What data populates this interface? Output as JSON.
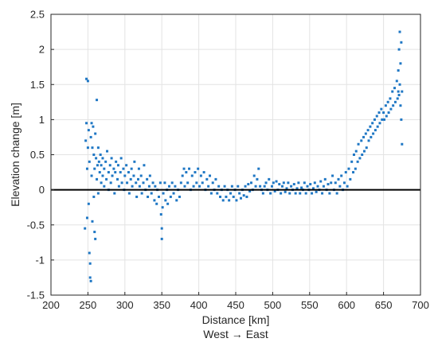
{
  "chart_data": {
    "type": "scatter",
    "title": "",
    "xlabel": "Distance [km]",
    "xlabel2": "West → East",
    "ylabel": "Elevation change [m]",
    "xlim": [
      200,
      700
    ],
    "ylim": [
      -1.5,
      2.5
    ],
    "xticks": [
      "200",
      "250",
      "300",
      "350",
      "400",
      "450",
      "500",
      "550",
      "600",
      "650",
      "700"
    ],
    "yticks": [
      "-1.5",
      "-1",
      "-0.5",
      "0",
      "0.5",
      "1",
      "1.5",
      "2",
      "2.5"
    ],
    "grid": true,
    "reference_line_y": 0,
    "marker_color": "#1f77c4",
    "series": [
      {
        "values": [
          [
            246,
            -0.55
          ],
          [
            247,
            0.7
          ],
          [
            248,
            1.58
          ],
          [
            248,
            0.95
          ],
          [
            249,
            0.3
          ],
          [
            249,
            -0.4
          ],
          [
            250,
            1.55
          ],
          [
            250,
            0.6
          ],
          [
            251,
            -0.2
          ],
          [
            251,
            0.85
          ],
          [
            252,
            -0.9
          ],
          [
            252,
            0.4
          ],
          [
            253,
            -1.05
          ],
          [
            253,
            -1.25
          ],
          [
            254,
            -1.3
          ],
          [
            254,
            0.75
          ],
          [
            255,
            0.95
          ],
          [
            255,
            0.2
          ],
          [
            256,
            -0.45
          ],
          [
            256,
            0.6
          ],
          [
            257,
            0.9
          ],
          [
            258,
            -0.1
          ],
          [
            258,
            0.5
          ],
          [
            259,
            -0.6
          ],
          [
            259,
            0.3
          ],
          [
            260,
            0.8
          ],
          [
            260,
            -0.7
          ],
          [
            261,
            0.45
          ],
          [
            262,
            1.28
          ],
          [
            262,
            0.15
          ],
          [
            263,
            0.35
          ],
          [
            264,
            0.6
          ],
          [
            264,
            -0.05
          ],
          [
            265,
            0.4
          ],
          [
            266,
            0.25
          ],
          [
            267,
            0.5
          ],
          [
            268,
            0.1
          ],
          [
            268,
            0.35
          ],
          [
            270,
            0.2
          ],
          [
            270,
            0.45
          ],
          [
            272,
            0.3
          ],
          [
            272,
            0.05
          ],
          [
            274,
            0.4
          ],
          [
            275,
            0.15
          ],
          [
            276,
            0.55
          ],
          [
            278,
            0.25
          ],
          [
            278,
            0.0
          ],
          [
            280,
            0.35
          ],
          [
            281,
            0.1
          ],
          [
            282,
            0.45
          ],
          [
            283,
            0.2
          ],
          [
            285,
            0.3
          ],
          [
            286,
            -0.05
          ],
          [
            287,
            0.25
          ],
          [
            288,
            0.4
          ],
          [
            290,
            0.15
          ],
          [
            291,
            0.35
          ],
          [
            292,
            0.05
          ],
          [
            294,
            0.25
          ],
          [
            295,
            0.45
          ],
          [
            296,
            0.1
          ],
          [
            298,
            0.3
          ],
          [
            299,
            0.0
          ],
          [
            300,
            0.2
          ],
          [
            302,
            0.35
          ],
          [
            303,
            0.1
          ],
          [
            305,
            0.25
          ],
          [
            306,
            -0.05
          ],
          [
            308,
            0.15
          ],
          [
            309,
            0.3
          ],
          [
            310,
            0.05
          ],
          [
            312,
            0.2
          ],
          [
            313,
            0.4
          ],
          [
            315,
            0.1
          ],
          [
            316,
            -0.1
          ],
          [
            318,
            0.15
          ],
          [
            319,
            0.3
          ],
          [
            320,
            0.05
          ],
          [
            322,
            0.2
          ],
          [
            323,
            -0.05
          ],
          [
            325,
            0.1
          ],
          [
            326,
            0.35
          ],
          [
            328,
            0.0
          ],
          [
            330,
            0.15
          ],
          [
            331,
            -0.1
          ],
          [
            333,
            0.05
          ],
          [
            334,
            0.2
          ],
          [
            336,
            -0.05
          ],
          [
            338,
            0.1
          ],
          [
            340,
            -0.15
          ],
          [
            341,
            0.05
          ],
          [
            343,
            -0.2
          ],
          [
            344,
            0.0
          ],
          [
            346,
            -0.1
          ],
          [
            348,
            0.1
          ],
          [
            349,
            -0.35
          ],
          [
            350,
            -0.7
          ],
          [
            350,
            -0.55
          ],
          [
            351,
            -0.25
          ],
          [
            352,
            -0.05
          ],
          [
            354,
            0.1
          ],
          [
            355,
            -0.15
          ],
          [
            357,
            0.0
          ],
          [
            358,
            -0.2
          ],
          [
            360,
            0.05
          ],
          [
            362,
            -0.1
          ],
          [
            364,
            0.1
          ],
          [
            366,
            -0.05
          ],
          [
            368,
            0.05
          ],
          [
            370,
            -0.15
          ],
          [
            372,
            0.0
          ],
          [
            374,
            -0.1
          ],
          [
            376,
            0.1
          ],
          [
            378,
            0.2
          ],
          [
            380,
            0.3
          ],
          [
            381,
            0.05
          ],
          [
            383,
            0.25
          ],
          [
            385,
            0.1
          ],
          [
            387,
            0.3
          ],
          [
            389,
            0.0
          ],
          [
            391,
            0.2
          ],
          [
            393,
            0.05
          ],
          [
            395,
            0.25
          ],
          [
            397,
            0.1
          ],
          [
            399,
            0.3
          ],
          [
            401,
            0.05
          ],
          [
            403,
            0.2
          ],
          [
            405,
            0.1
          ],
          [
            407,
            0.25
          ],
          [
            409,
            0.0
          ],
          [
            411,
            0.15
          ],
          [
            413,
            0.05
          ],
          [
            415,
            0.2
          ],
          [
            417,
            -0.05
          ],
          [
            419,
            0.1
          ],
          [
            421,
            0.0
          ],
          [
            423,
            0.15
          ],
          [
            425,
            -0.05
          ],
          [
            427,
            0.05
          ],
          [
            429,
            -0.1
          ],
          [
            431,
            0.0
          ],
          [
            433,
            -0.15
          ],
          [
            435,
            0.05
          ],
          [
            437,
            -0.1
          ],
          [
            439,
            0.0
          ],
          [
            441,
            -0.15
          ],
          [
            443,
            -0.05
          ],
          [
            445,
            0.05
          ],
          [
            447,
            -0.1
          ],
          [
            449,
            0.0
          ],
          [
            451,
            -0.15
          ],
          [
            453,
            0.05
          ],
          [
            455,
            -0.05
          ],
          [
            457,
            -0.12
          ],
          [
            459,
            0.0
          ],
          [
            461,
            -0.08
          ],
          [
            463,
            0.05
          ],
          [
            465,
            -0.1
          ],
          [
            467,
            0.08
          ],
          [
            469,
            -0.02
          ],
          [
            471,
            0.1
          ],
          [
            473,
            0.0
          ],
          [
            475,
            0.2
          ],
          [
            477,
            0.05
          ],
          [
            479,
            0.15
          ],
          [
            481,
            0.3
          ],
          [
            483,
            0.05
          ],
          [
            485,
            0.0
          ],
          [
            487,
            -0.05
          ],
          [
            489,
            0.05
          ],
          [
            491,
            0.1
          ],
          [
            493,
            0.0
          ],
          [
            495,
            0.15
          ],
          [
            497,
            -0.05
          ],
          [
            499,
            0.05
          ],
          [
            501,
            0.1
          ],
          [
            503,
            -0.02
          ],
          [
            505,
            0.12
          ],
          [
            507,
            0.0
          ],
          [
            509,
            0.08
          ],
          [
            511,
            -0.05
          ],
          [
            513,
            0.05
          ],
          [
            515,
            0.1
          ],
          [
            517,
            -0.03
          ],
          [
            519,
            0.02
          ],
          [
            521,
            0.1
          ],
          [
            523,
            -0.05
          ],
          [
            525,
            0.05
          ],
          [
            527,
            0.0
          ],
          [
            529,
            0.08
          ],
          [
            531,
            -0.05
          ],
          [
            533,
            0.02
          ],
          [
            535,
            0.1
          ],
          [
            537,
            -0.05
          ],
          [
            539,
            0.03
          ],
          [
            541,
            0.0
          ],
          [
            543,
            0.1
          ],
          [
            545,
            -0.05
          ],
          [
            547,
            0.05
          ],
          [
            549,
            0.0
          ],
          [
            551,
            0.08
          ],
          [
            553,
            -0.05
          ],
          [
            555,
            0.02
          ],
          [
            557,
            0.1
          ],
          [
            559,
            -0.03
          ],
          [
            561,
            0.05
          ],
          [
            563,
            0.0
          ],
          [
            565,
            0.12
          ],
          [
            567,
            -0.05
          ],
          [
            569,
            0.05
          ],
          [
            571,
            0.15
          ],
          [
            573,
            0.0
          ],
          [
            575,
            0.08
          ],
          [
            577,
            -0.05
          ],
          [
            579,
            0.1
          ],
          [
            581,
            0.2
          ],
          [
            583,
            0.0
          ],
          [
            585,
            0.1
          ],
          [
            587,
            -0.05
          ],
          [
            589,
            0.15
          ],
          [
            591,
            0.05
          ],
          [
            593,
            0.2
          ],
          [
            595,
            0.0
          ],
          [
            597,
            0.1
          ],
          [
            599,
            0.25
          ],
          [
            601,
            0.05
          ],
          [
            603,
            0.3
          ],
          [
            605,
            0.15
          ],
          [
            607,
            0.4
          ],
          [
            609,
            0.25
          ],
          [
            610,
            0.5
          ],
          [
            612,
            0.3
          ],
          [
            613,
            0.55
          ],
          [
            615,
            0.4
          ],
          [
            616,
            0.65
          ],
          [
            618,
            0.45
          ],
          [
            620,
            0.7
          ],
          [
            621,
            0.5
          ],
          [
            623,
            0.75
          ],
          [
            624,
            0.55
          ],
          [
            626,
            0.8
          ],
          [
            627,
            0.6
          ],
          [
            629,
            0.85
          ],
          [
            630,
            0.7
          ],
          [
            632,
            0.9
          ],
          [
            633,
            0.75
          ],
          [
            635,
            0.95
          ],
          [
            636,
            0.8
          ],
          [
            638,
            1.0
          ],
          [
            639,
            0.85
          ],
          [
            641,
            1.05
          ],
          [
            642,
            0.9
          ],
          [
            644,
            1.1
          ],
          [
            645,
            0.95
          ],
          [
            647,
            1.15
          ],
          [
            648,
            1.0
          ],
          [
            650,
            1.1
          ],
          [
            651,
            1.0
          ],
          [
            653,
            1.2
          ],
          [
            654,
            1.05
          ],
          [
            656,
            1.25
          ],
          [
            657,
            1.1
          ],
          [
            659,
            1.3
          ],
          [
            660,
            1.15
          ],
          [
            662,
            1.4
          ],
          [
            663,
            1.2
          ],
          [
            665,
            1.45
          ],
          [
            666,
            1.25
          ],
          [
            668,
            1.55
          ],
          [
            669,
            1.3
          ],
          [
            670,
            1.7
          ],
          [
            670,
            1.4
          ],
          [
            671,
            2.0
          ],
          [
            671,
            1.35
          ],
          [
            672,
            2.25
          ],
          [
            672,
            1.5
          ],
          [
            673,
            1.8
          ],
          [
            673,
            1.2
          ],
          [
            674,
            2.1
          ],
          [
            674,
            1.0
          ],
          [
            675,
            0.65
          ],
          [
            675,
            1.4
          ]
        ]
      }
    ]
  }
}
